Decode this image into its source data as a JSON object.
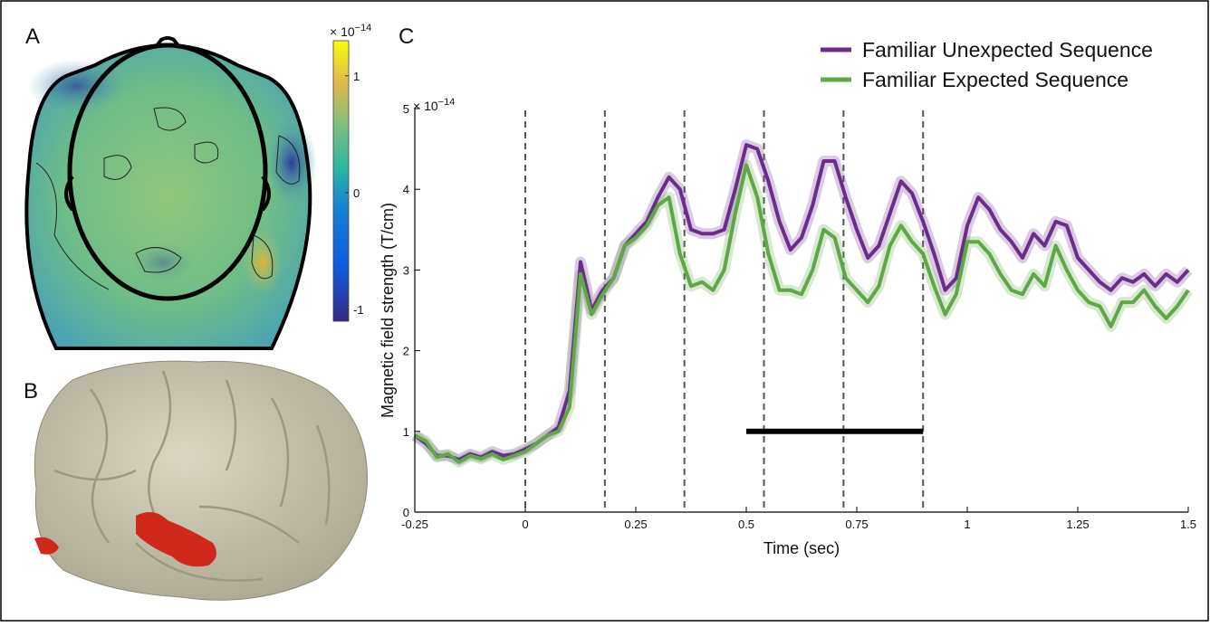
{
  "panel_labels": [
    "A",
    "B",
    "C"
  ],
  "chart_data": [
    {
      "type": "topomap",
      "exponent_label": {
        "base": "× 10",
        "power": "−14"
      },
      "ylim": [
        -1.1,
        1.3
      ],
      "yticks": [
        -1,
        0,
        1
      ]
    },
    {
      "type": "line",
      "exponent_label": {
        "base": "× 10",
        "power": "−14"
      },
      "xlabel": "Time (sec)",
      "ylabel": "Magnetic field strength (T/cm)",
      "xlim": [
        -0.25,
        1.5
      ],
      "xticks": [
        -0.25,
        0,
        0.25,
        0.5,
        0.75,
        1,
        1.25,
        1.5
      ],
      "ylim": [
        0,
        5
      ],
      "yticks": [
        0,
        1,
        2,
        3,
        4,
        5
      ],
      "vlines": [
        0,
        0.18,
        0.36,
        0.54,
        0.72,
        0.9
      ],
      "sig_bar": {
        "x": [
          0.5,
          0.9
        ],
        "y": 1
      },
      "legend": "upper right",
      "x": [
        -0.25,
        -0.225,
        -0.2,
        -0.175,
        -0.15,
        -0.125,
        -0.1,
        -0.075,
        -0.05,
        -0.025,
        0,
        0.025,
        0.05,
        0.075,
        0.1,
        0.125,
        0.15,
        0.175,
        0.2,
        0.225,
        0.25,
        0.275,
        0.3,
        0.325,
        0.35,
        0.375,
        0.4,
        0.425,
        0.45,
        0.475,
        0.5,
        0.525,
        0.55,
        0.575,
        0.6,
        0.625,
        0.65,
        0.675,
        0.7,
        0.725,
        0.75,
        0.775,
        0.8,
        0.825,
        0.85,
        0.875,
        0.9,
        0.925,
        0.95,
        0.975,
        1,
        1.025,
        1.05,
        1.075,
        1.1,
        1.125,
        1.15,
        1.175,
        1.2,
        1.225,
        1.25,
        1.275,
        1.3,
        1.325,
        1.35,
        1.375,
        1.4,
        1.425,
        1.45,
        1.475,
        1.5
      ],
      "series": [
        {
          "name": "Familiar Unexpected Sequence",
          "color": "#6b2d8c",
          "values": [
            0.95,
            0.85,
            0.7,
            0.7,
            0.65,
            0.72,
            0.68,
            0.75,
            0.7,
            0.72,
            0.78,
            0.85,
            0.95,
            1.05,
            1.5,
            3.1,
            2.5,
            2.75,
            2.9,
            3.3,
            3.45,
            3.6,
            3.9,
            4.15,
            4.0,
            3.5,
            3.45,
            3.45,
            3.5,
            4.0,
            4.55,
            4.5,
            4.1,
            3.6,
            3.25,
            3.4,
            3.8,
            4.35,
            4.35,
            3.9,
            3.5,
            3.15,
            3.3,
            3.7,
            4.1,
            3.95,
            3.6,
            3.2,
            2.75,
            2.9,
            3.55,
            3.9,
            3.75,
            3.5,
            3.35,
            3.15,
            3.45,
            3.3,
            3.6,
            3.55,
            3.15,
            3.0,
            2.85,
            2.75,
            2.9,
            2.85,
            2.95,
            2.8,
            2.95,
            2.85,
            3.0
          ]
        },
        {
          "name": "Familiar Expected Sequence",
          "color": "#5ea845",
          "values": [
            0.95,
            0.88,
            0.68,
            0.72,
            0.62,
            0.7,
            0.66,
            0.72,
            0.65,
            0.7,
            0.75,
            0.85,
            0.95,
            1.0,
            1.3,
            2.95,
            2.45,
            2.7,
            2.9,
            3.3,
            3.4,
            3.55,
            3.8,
            3.9,
            3.2,
            2.8,
            2.85,
            2.75,
            3.0,
            3.7,
            4.3,
            3.9,
            3.2,
            2.75,
            2.75,
            2.7,
            3.0,
            3.5,
            3.4,
            2.9,
            2.75,
            2.6,
            2.8,
            3.3,
            3.55,
            3.35,
            3.2,
            2.8,
            2.45,
            2.7,
            3.35,
            3.35,
            3.2,
            2.95,
            2.75,
            2.7,
            2.95,
            2.8,
            3.3,
            3.0,
            2.75,
            2.6,
            2.55,
            2.3,
            2.6,
            2.6,
            2.75,
            2.55,
            2.4,
            2.55,
            2.75
          ]
        }
      ]
    }
  ]
}
